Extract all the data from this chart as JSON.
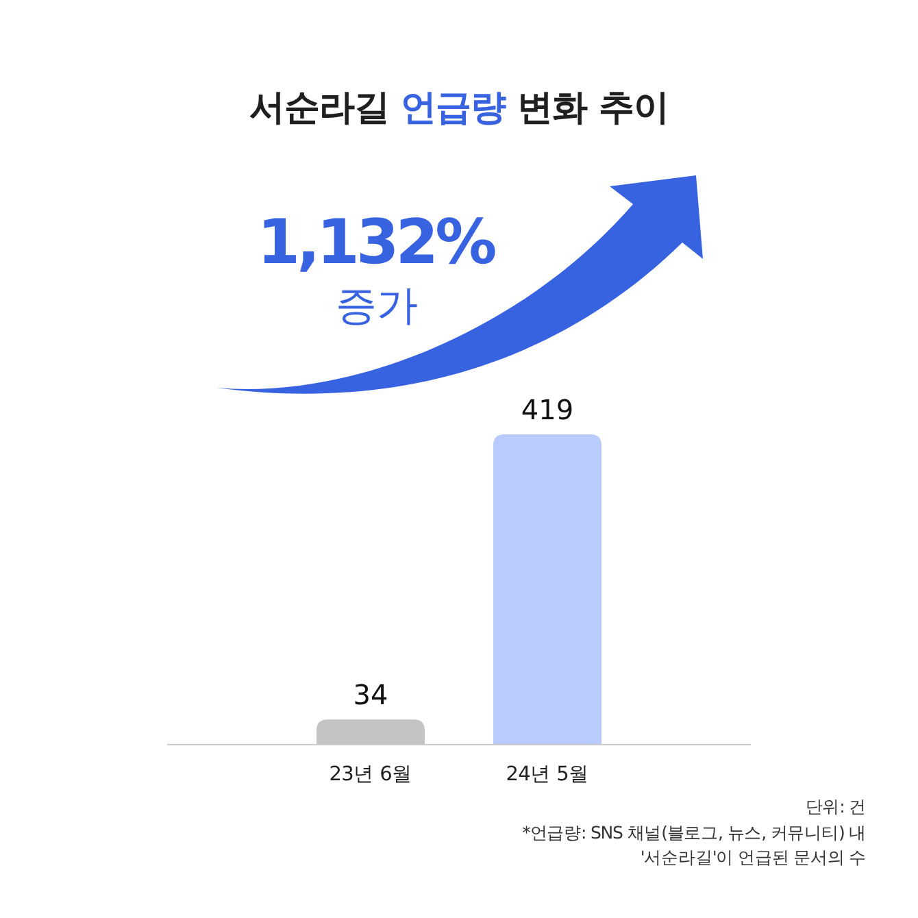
{
  "chart_data": {
    "type": "bar",
    "title": "서순라길 **언급량** 변화 추이",
    "categories": [
      "23년 6월",
      "24년 5월"
    ],
    "values": [
      34,
      419
    ],
    "colors": [
      "#c4c4c4",
      "#b9cafc"
    ],
    "data_labels": true,
    "annotations": [
      "1,132%",
      "증가",
      "단위: 건",
      "*언급량: SNS 채널(블로그, 뉴스, 커뮤니티) 내 '서순라길'이 언급된 문서의 수"
    ]
  }
}
